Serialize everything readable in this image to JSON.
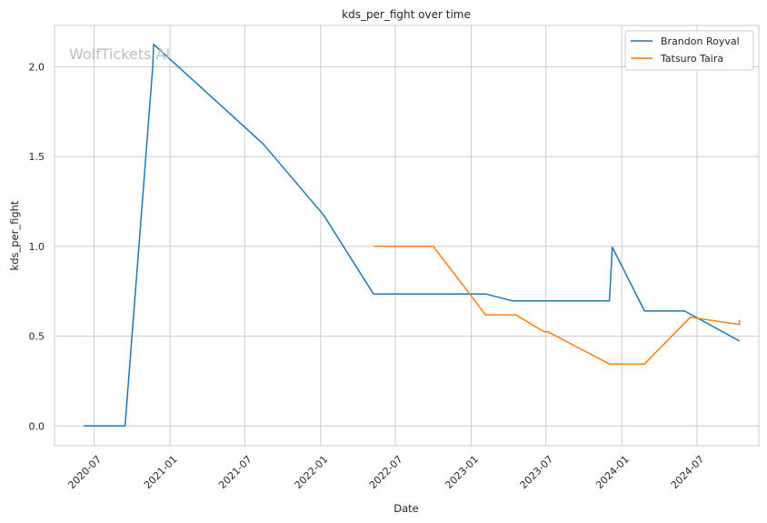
{
  "chart_data": {
    "type": "line",
    "title": "kds_per_fight over time",
    "xlabel": "Date",
    "ylabel": "kds_per_fight",
    "watermark": "WolfTickets AI",
    "xlim": [
      "2020-03-27",
      "2024-11-28"
    ],
    "ylim": [
      -0.11,
      2.23
    ],
    "x_ticks": [
      "2020-07",
      "2021-01",
      "2021-07",
      "2022-01",
      "2022-07",
      "2023-01",
      "2023-07",
      "2024-01",
      "2024-07"
    ],
    "y_ticks": [
      "0.0",
      "0.5",
      "1.0",
      "1.5",
      "2.0"
    ],
    "grid": true,
    "legend_position": "top-right",
    "series": [
      {
        "name": "Brandon Royval",
        "color": "#1f77b4",
        "points": [
          [
            "2020-06-06",
            0.0
          ],
          [
            "2020-09-14",
            0.0
          ],
          [
            "2020-11-20",
            2.0
          ],
          [
            "2020-11-22",
            2.125
          ],
          [
            "2021-08-15",
            1.57
          ],
          [
            "2022-01-08",
            1.175
          ],
          [
            "2022-05-09",
            0.735
          ],
          [
            "2023-02-05",
            0.735
          ],
          [
            "2023-04-10",
            0.697
          ],
          [
            "2023-12-02",
            0.697
          ],
          [
            "2023-12-09",
            0.995
          ],
          [
            "2024-02-25",
            0.64
          ],
          [
            "2024-06-01",
            0.64
          ],
          [
            "2024-10-12",
            0.473
          ]
        ]
      },
      {
        "name": "Tatsuro Taira",
        "color": "#ff7f0e",
        "points": [
          [
            "2022-05-10",
            1.0
          ],
          [
            "2022-10-01",
            1.0
          ],
          [
            "2023-02-05",
            0.618
          ],
          [
            "2023-04-20",
            0.618
          ],
          [
            "2023-06-26",
            0.525
          ],
          [
            "2023-07-05",
            0.525
          ],
          [
            "2023-12-02",
            0.345
          ],
          [
            "2024-02-25",
            0.345
          ],
          [
            "2024-06-15",
            0.605
          ],
          [
            "2024-10-12",
            0.565
          ],
          [
            "2024-10-12",
            0.59
          ]
        ]
      }
    ]
  }
}
